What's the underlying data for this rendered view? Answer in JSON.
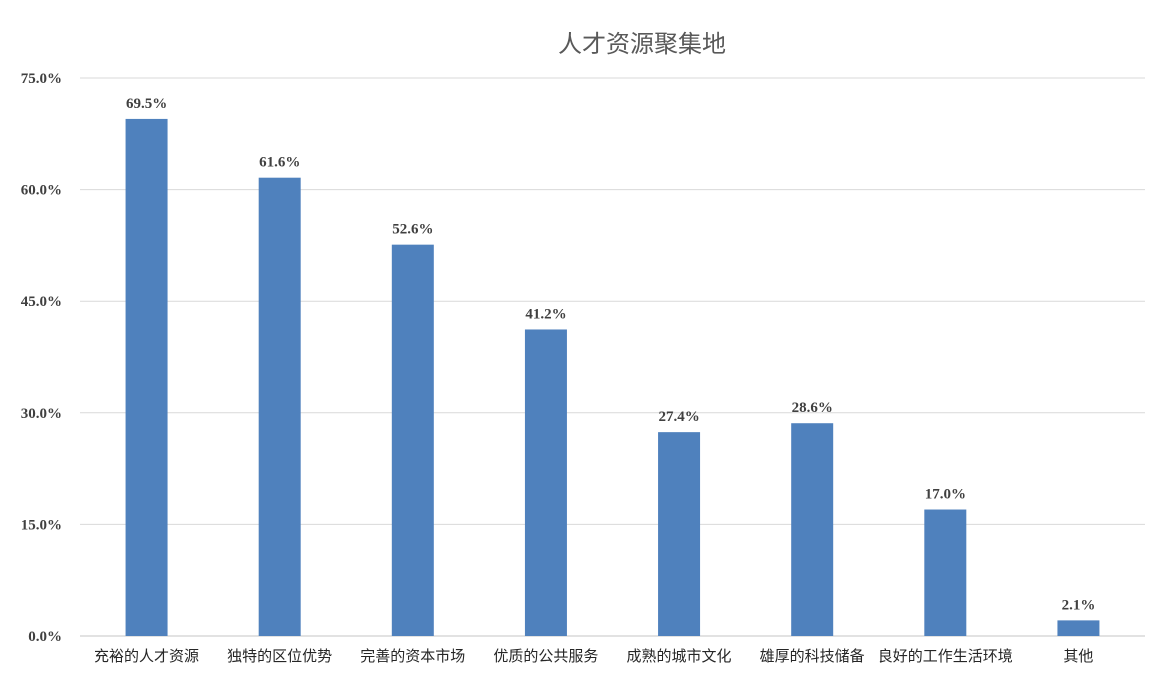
{
  "chart_data": {
    "type": "bar",
    "title": "人才资源聚集地",
    "categories": [
      "充裕的人才资源",
      "独特的区位优势",
      "完善的资本市场",
      "优质的公共服务",
      "成熟的城市文化",
      "雄厚的科技储备",
      "良好的工作生活环境",
      "其他"
    ],
    "values": [
      69.5,
      61.6,
      52.6,
      41.2,
      27.4,
      28.6,
      17.0,
      2.1
    ],
    "data_labels": [
      "69.5%",
      "61.6%",
      "52.6%",
      "41.2%",
      "27.4%",
      "28.6%",
      "17.0%",
      "2.1%"
    ],
    "yticks": [
      "0.0%",
      "15.0%",
      "30.0%",
      "45.0%",
      "60.0%",
      "75.0%"
    ],
    "ylim": [
      0,
      75
    ],
    "xlabel": "",
    "ylabel": "",
    "grid": true,
    "legend": "none",
    "bar_color": "#4f81bd",
    "grid_color": "#d9d9d9"
  }
}
